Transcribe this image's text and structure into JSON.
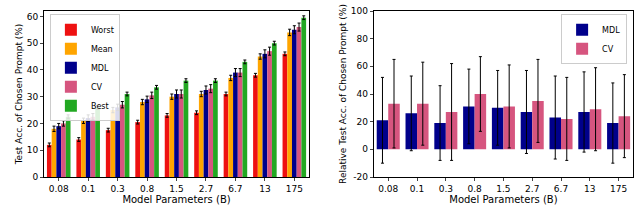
{
  "chart_data": [
    {
      "type": "bar",
      "x_label": "Model Parameters (B)",
      "y_label": "Test Acc. of Chosen Prompt (%)",
      "categories": [
        "0.08",
        "0.1",
        "0.3",
        "0.8",
        "1.5",
        "2.7",
        "6.7",
        "13",
        "175"
      ],
      "series": [
        {
          "name": "Worst",
          "color": "#ee1111",
          "values": [
            12,
            14,
            17.5,
            20.5,
            23,
            24,
            31,
            38,
            46
          ],
          "errors": [
            0.7,
            0.7,
            0.7,
            0.7,
            0.7,
            0.7,
            0.7,
            0.7,
            0.7
          ]
        },
        {
          "name": "Mean",
          "color": "#ffa500",
          "values": [
            18,
            21,
            25,
            28,
            30,
            31,
            37,
            45,
            54
          ],
          "errors": [
            1,
            1,
            1,
            1,
            1,
            1,
            1,
            1,
            1.2
          ]
        },
        {
          "name": "MDL",
          "color": "#00008b",
          "values": [
            19,
            22,
            26,
            29,
            31,
            32.5,
            39,
            46,
            55
          ],
          "errors": [
            1,
            1.2,
            1.2,
            1.2,
            1.5,
            1.5,
            1.5,
            1.5,
            1.5
          ]
        },
        {
          "name": "CV",
          "color": "#d6557f",
          "values": [
            20,
            22.5,
            27,
            30.5,
            31,
            33,
            39,
            47,
            56
          ],
          "errors": [
            1,
            1.2,
            1.2,
            1.2,
            1.5,
            1.5,
            1.5,
            1.5,
            1.5
          ]
        },
        {
          "name": "Best",
          "color": "#22a822",
          "values": [
            22.5,
            26,
            31,
            33.5,
            36,
            36,
            43,
            50,
            59.5
          ],
          "errors": [
            0.7,
            0.7,
            0.7,
            0.7,
            0.7,
            0.7,
            0.7,
            0.7,
            0.7
          ]
        }
      ],
      "ylim": [
        0,
        62
      ],
      "yticks": [
        0,
        10,
        20,
        30,
        40,
        50,
        60
      ],
      "grid": false,
      "legend": "upper left"
    },
    {
      "type": "bar",
      "x_label": "Model Parameters (B)",
      "y_label": "Relative Test Acc. of Chosen Prompt (%)",
      "categories": [
        "0.08",
        "0.1",
        "0.3",
        "0.8",
        "1.5",
        "2.7",
        "6.7",
        "13",
        "175"
      ],
      "series": [
        {
          "name": "MDL",
          "color": "#00008b",
          "values": [
            21,
            26,
            19,
            31,
            30,
            27,
            23,
            27,
            19
          ],
          "errors": [
            31,
            27,
            27,
            27,
            27,
            30,
            30,
            29,
            29
          ]
        },
        {
          "name": "CV",
          "color": "#d6557f",
          "values": [
            33,
            33,
            27,
            40,
            31,
            35,
            22,
            29,
            24
          ],
          "errors": [
            32,
            30,
            35,
            27,
            30,
            30,
            30,
            30,
            30
          ]
        }
      ],
      "ylim": [
        -20,
        100
      ],
      "yticks": [
        -20,
        0,
        20,
        40,
        60,
        80,
        100
      ],
      "grid": false,
      "legend": "upper right"
    }
  ]
}
